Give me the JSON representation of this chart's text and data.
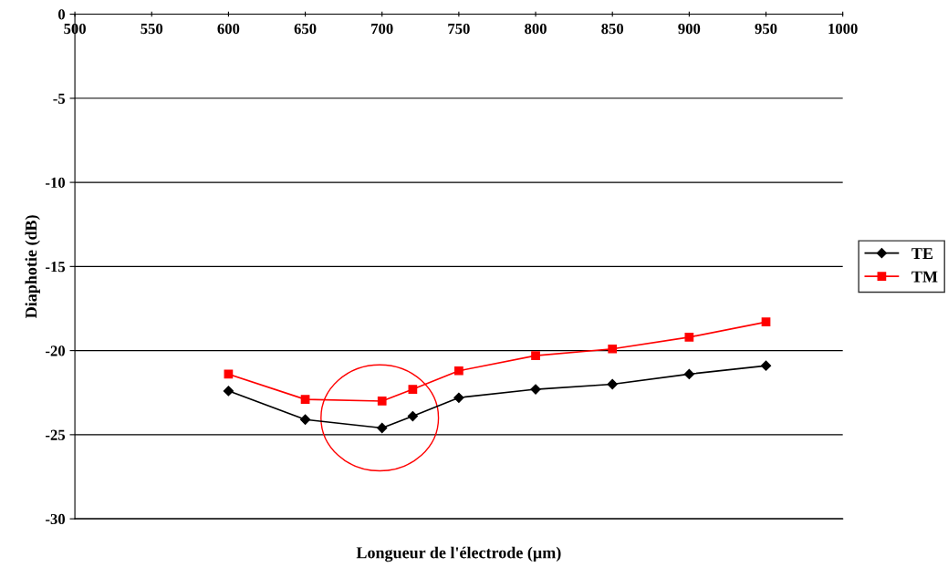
{
  "chart_data": {
    "type": "line",
    "xlabel": "Longueur de l'électrode (µm)",
    "ylabel": "Diaphotie (dB)",
    "x": [
      600,
      650,
      700,
      720,
      750,
      800,
      850,
      900,
      950
    ],
    "series": [
      {
        "name": "TE",
        "color": "#000000",
        "marker": "diamond",
        "values": [
          -22.4,
          -24.1,
          -24.6,
          -23.9,
          -22.8,
          -22.3,
          -22.0,
          -21.4,
          -20.9
        ]
      },
      {
        "name": "TM",
        "color": "#ff0000",
        "marker": "square",
        "values": [
          -21.4,
          -22.9,
          -23.0,
          -22.3,
          -21.2,
          -20.3,
          -19.9,
          -19.2,
          -18.3
        ]
      }
    ],
    "xlim": [
      500,
      1000
    ],
    "xticks": [
      500,
      550,
      600,
      650,
      700,
      750,
      800,
      850,
      900,
      950,
      1000
    ],
    "ylim": [
      -30,
      0
    ],
    "yticks": [
      -30,
      -25,
      -20,
      -15,
      -10,
      -5,
      0
    ],
    "grid": "y",
    "legend": "right",
    "line_style": "solid"
  }
}
